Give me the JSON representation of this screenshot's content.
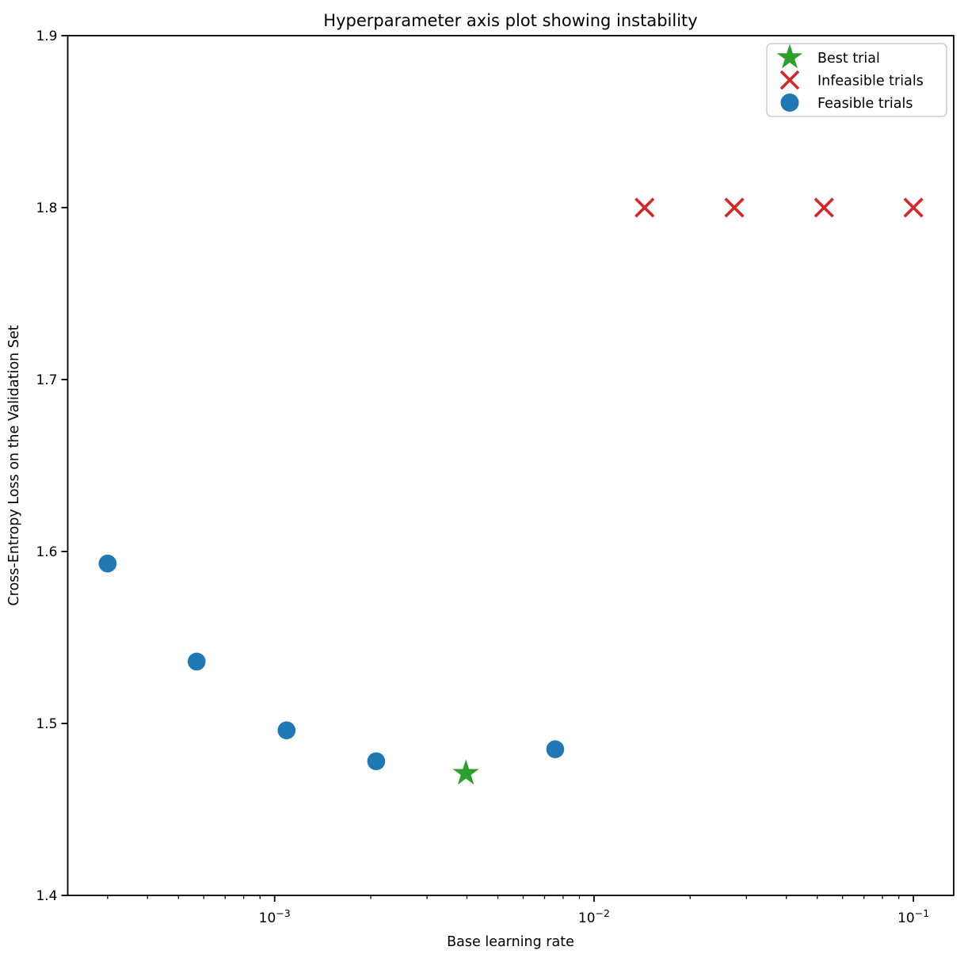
{
  "chart_data": {
    "type": "scatter",
    "title": "Hyperparameter axis plot showing instability",
    "xlabel": "Base learning rate",
    "ylabel": "Cross-Entropy Loss on the Validation Set",
    "xscale": "log",
    "yscale": "linear",
    "xlim": [
      0.000225,
      0.1337
    ],
    "ylim": [
      1.4,
      1.9
    ],
    "x_major_ticks": [
      0.001,
      0.01,
      0.1
    ],
    "x_tick_labels": [
      "10⁻³",
      "10⁻²",
      "10⁻¹"
    ],
    "y_ticks": [
      1.4,
      1.5,
      1.6,
      1.7,
      1.8,
      1.9
    ],
    "y_tick_labels": [
      "1.4",
      "1.5",
      "1.6",
      "1.7",
      "1.8",
      "1.9"
    ],
    "grid": false,
    "legend_position": "upper right",
    "series": [
      {
        "name": "Best trial",
        "marker": "star",
        "color": "#2ca02c",
        "points": [
          {
            "x": 0.00397,
            "y": 1.471
          }
        ]
      },
      {
        "name": "Infeasible trials",
        "marker": "x",
        "color": "#d62728",
        "points": [
          {
            "x": 0.0144,
            "y": 1.8
          },
          {
            "x": 0.0275,
            "y": 1.8
          },
          {
            "x": 0.0525,
            "y": 1.8
          },
          {
            "x": 0.1,
            "y": 1.8
          }
        ]
      },
      {
        "name": "Feasible trials",
        "marker": "circle",
        "color": "#1f77b4",
        "points": [
          {
            "x": 0.0003,
            "y": 1.593
          },
          {
            "x": 0.00057,
            "y": 1.536
          },
          {
            "x": 0.00109,
            "y": 1.496
          },
          {
            "x": 0.00208,
            "y": 1.478
          },
          {
            "x": 0.00756,
            "y": 1.485
          }
        ]
      }
    ],
    "colors": {
      "background": "#ffffff",
      "spine": "#000000",
      "legend_border": "#cccccc",
      "best": "#2ca02c",
      "infeasible": "#d62728",
      "feasible": "#1f77b4"
    }
  }
}
